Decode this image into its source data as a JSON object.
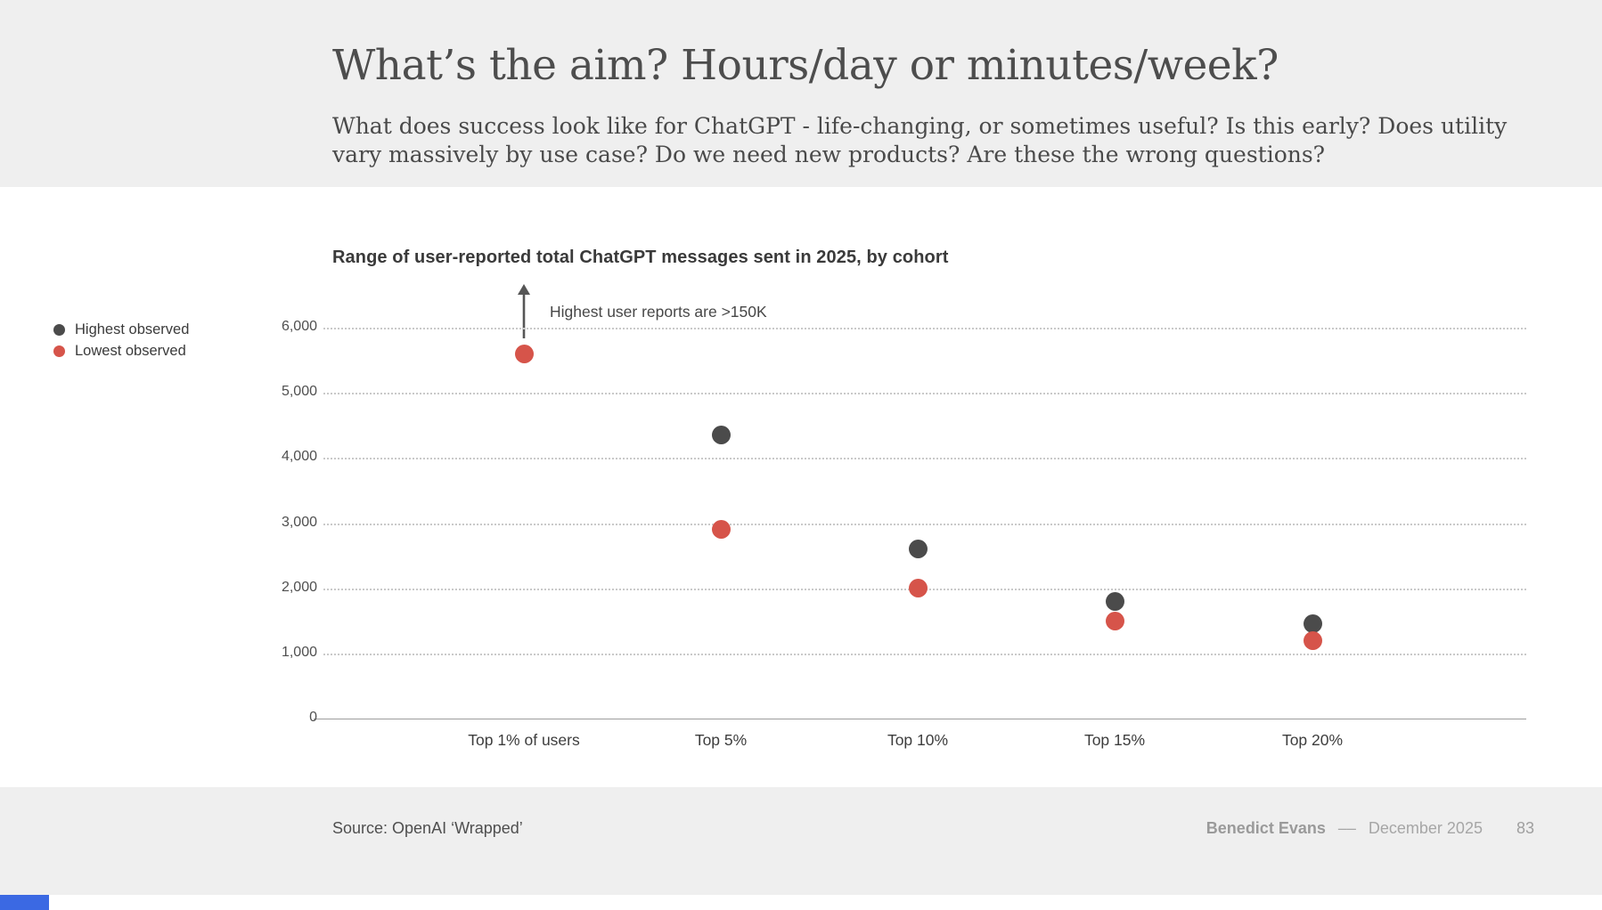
{
  "slide": {
    "title": "What’s the aim? Hours/day or minutes/week?",
    "subtitle": "What does success look like for ChatGPT - life-changing, or sometimes useful? Is this early? Does utility vary massively by use case? Do we need new products? Are these the wrong questions?",
    "footer": {
      "source": "Source: OpenAI ‘Wrapped’",
      "author": "Benedict Evans",
      "separator": "––",
      "date": "December 2025",
      "page": "83"
    }
  },
  "chart_data": {
    "type": "scatter",
    "title": "Range of user-reported total ChatGPT messages sent in 2025, by cohort",
    "categories": [
      "Top 1% of users",
      "Top 5%",
      "Top 10%",
      "Top 15%",
      "Top 20%"
    ],
    "series": [
      {
        "name": "Highest observed",
        "color": "#4b4b4b",
        "values": [
          ">150K",
          4350,
          2600,
          1800,
          1450
        ]
      },
      {
        "name": "Lowest observed",
        "color": "#d6544a",
        "values": [
          5600,
          2900,
          2000,
          1500,
          1200
        ]
      }
    ],
    "annotation": {
      "text": "Highest user reports are >150K"
    },
    "yticks": [
      0,
      1000,
      2000,
      3000,
      4000,
      5000,
      6000
    ],
    "ylim": [
      0,
      6000
    ],
    "grid": "horizontal-dotted",
    "legend_position": "left"
  },
  "colors": {
    "band": "#efefef",
    "accent_dark": "#4b4b4b",
    "accent_red": "#d6544a",
    "progress_blue": "#3b69e3"
  }
}
